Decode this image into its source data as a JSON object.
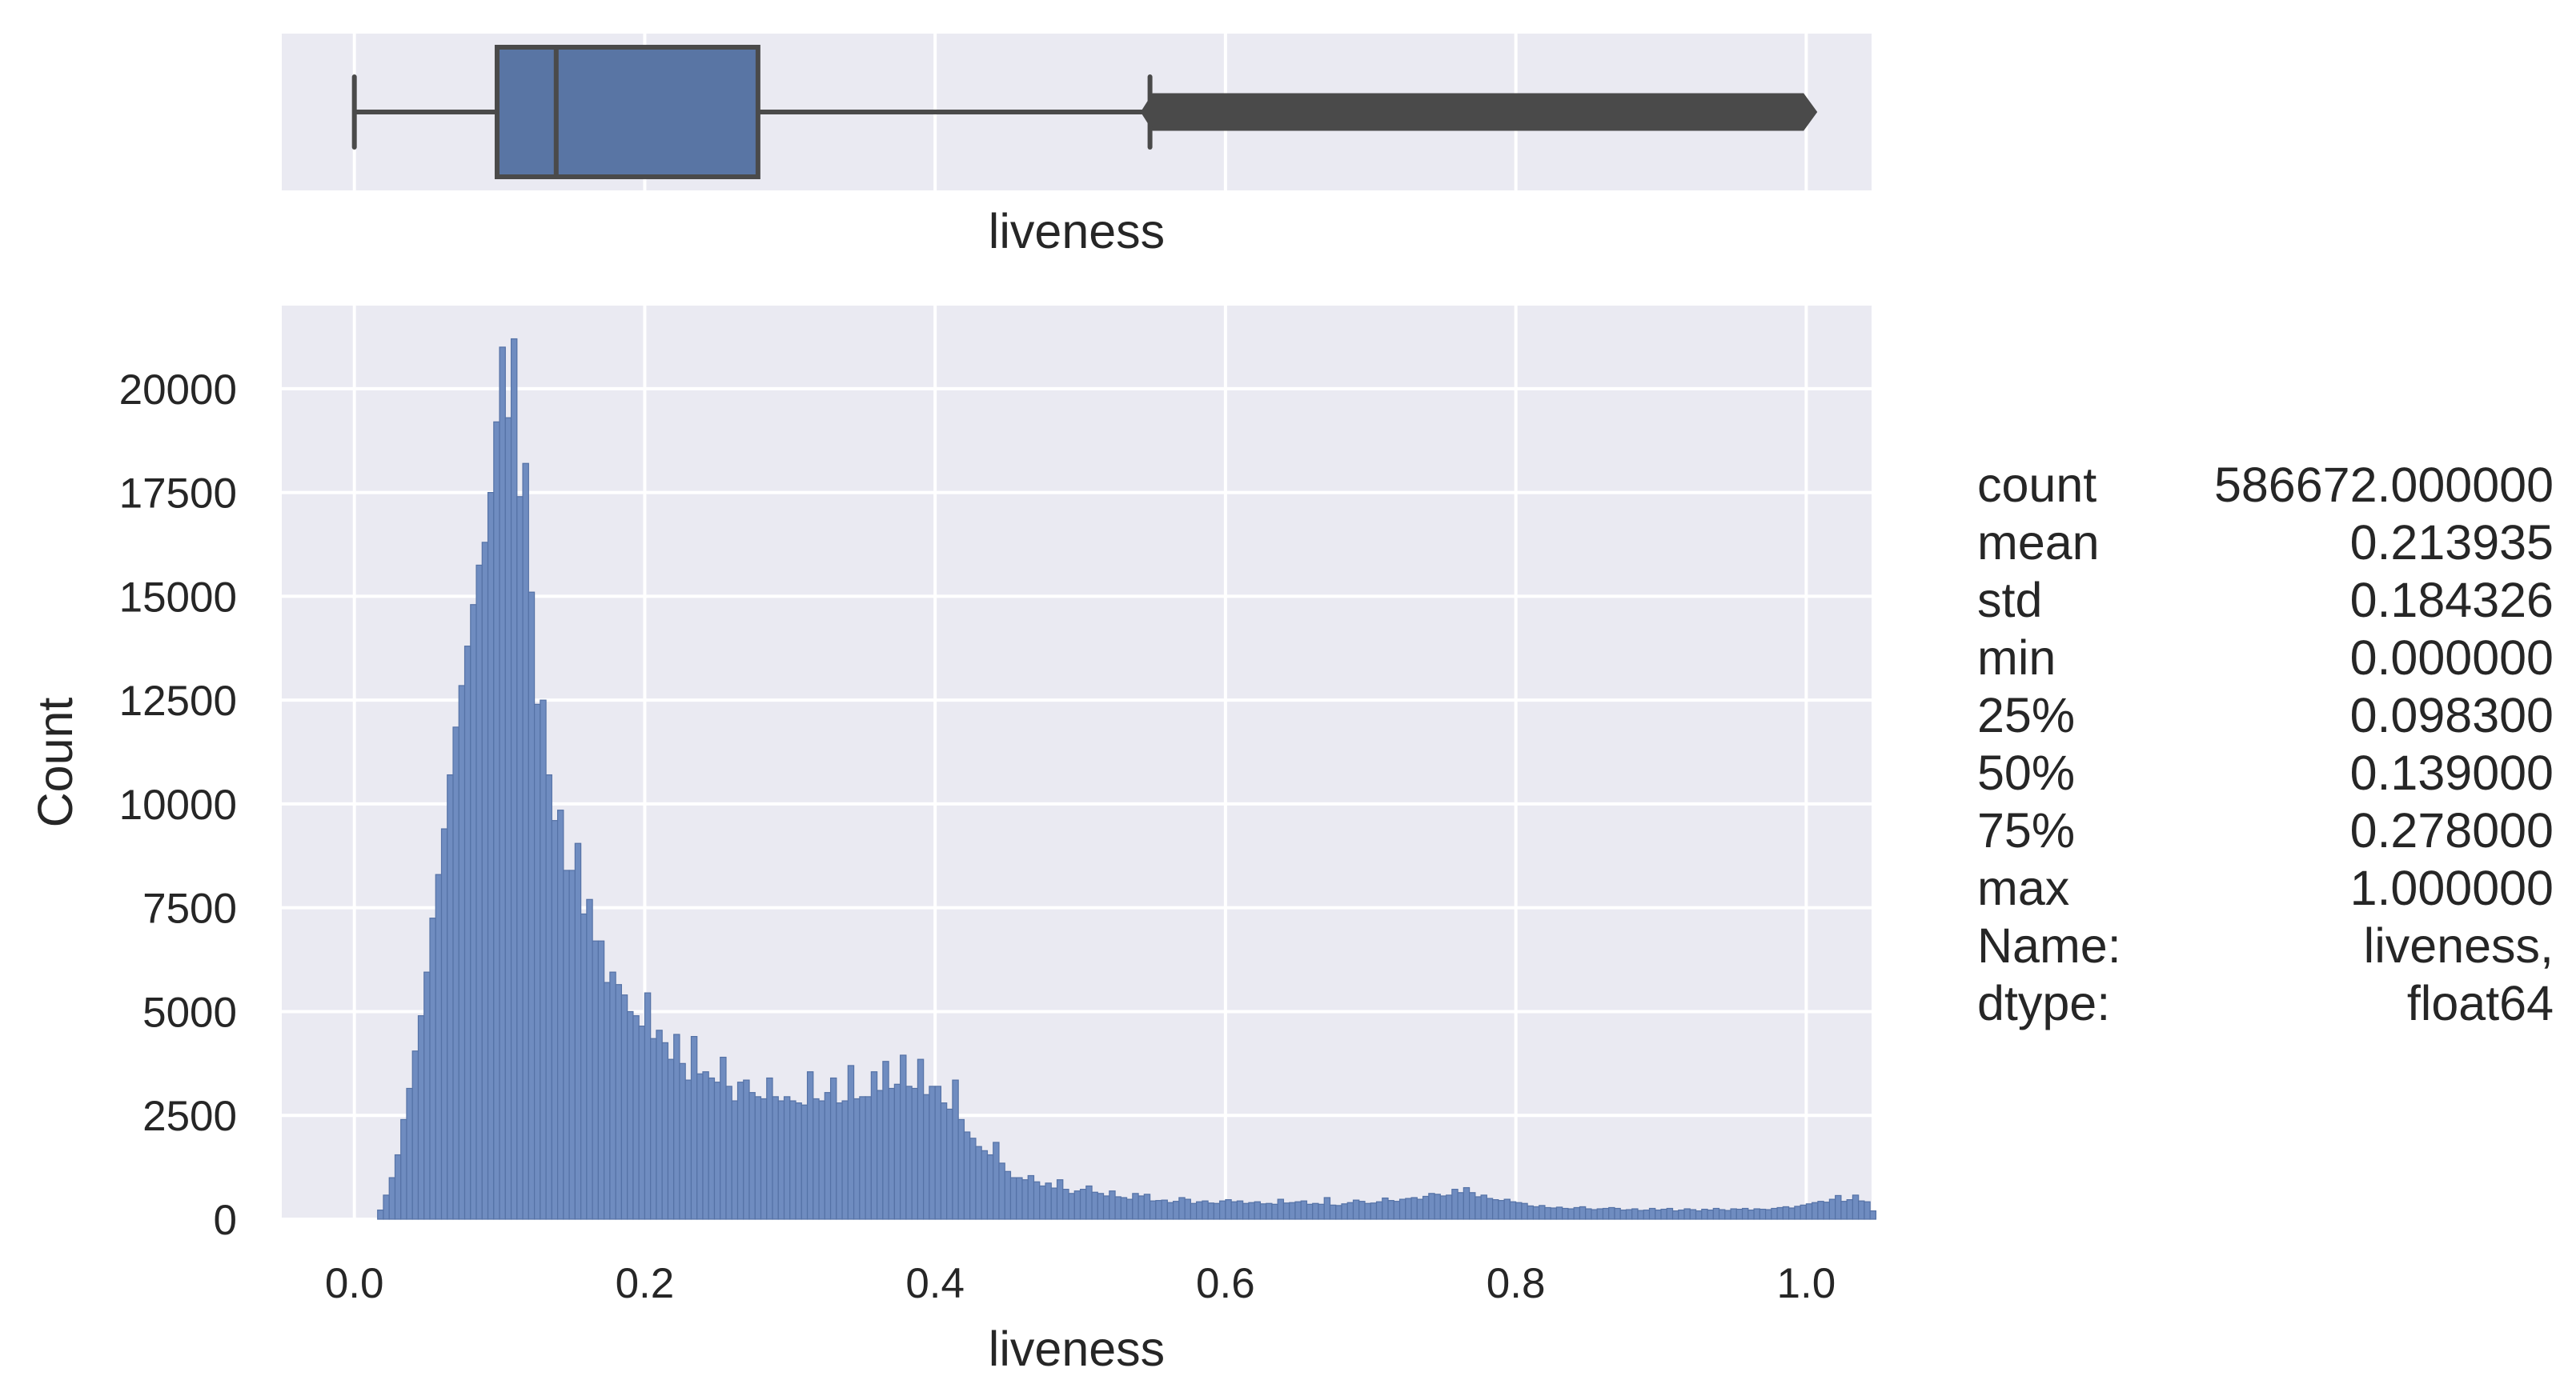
{
  "chart_data": [
    {
      "type": "box",
      "xlabel": "liveness",
      "xlim": [
        -0.05,
        1.045
      ],
      "box": {
        "whisker_low": 0.0,
        "q1": 0.0983,
        "median": 0.139,
        "q3": 0.278,
        "whisker_high": 0.548,
        "outliers_range": [
          0.548,
          1.0
        ]
      },
      "colors": {
        "box": "#5975a4",
        "edge": "#4a4a4a",
        "background": "#eaeaf2",
        "grid": "#ffffff"
      }
    },
    {
      "type": "histogram",
      "xlabel": "liveness",
      "ylabel": "Count",
      "xlim": [
        -0.05,
        1.045
      ],
      "ylim": [
        0,
        22000
      ],
      "xticks": [
        "0.0",
        "0.2",
        "0.4",
        "0.6",
        "0.8",
        "1.0"
      ],
      "yticks": [
        "0",
        "2500",
        "5000",
        "7500",
        "10000",
        "12500",
        "15000",
        "17500",
        "20000"
      ],
      "bin_start": 0.0,
      "bin_width": 0.004,
      "values": [
        0,
        0,
        0,
        0,
        220,
        580,
        1000,
        1550,
        2400,
        3150,
        4050,
        4900,
        5950,
        7250,
        8300,
        9400,
        10700,
        11850,
        12850,
        13800,
        14800,
        15750,
        16300,
        17500,
        19200,
        21000,
        19300,
        21200,
        17400,
        18200,
        15100,
        12400,
        12500,
        10700,
        9600,
        9850,
        8400,
        8400,
        9050,
        7350,
        7700,
        6700,
        6700,
        5700,
        5950,
        5650,
        5400,
        5000,
        4900,
        4650,
        5450,
        4350,
        4550,
        4250,
        3850,
        4450,
        3750,
        3350,
        4400,
        3500,
        3550,
        3400,
        3300,
        3900,
        3200,
        2850,
        3300,
        3350,
        3050,
        2950,
        2900,
        3400,
        2950,
        2850,
        2950,
        2850,
        2800,
        2750,
        3550,
        2900,
        2850,
        3050,
        3400,
        2800,
        2850,
        3700,
        2900,
        2950,
        2950,
        3550,
        3100,
        3800,
        3150,
        3250,
        3950,
        3200,
        3150,
        3850,
        3000,
        3200,
        3200,
        2800,
        2650,
        3350,
        2400,
        2100,
        1950,
        1750,
        1650,
        1550,
        1850,
        1350,
        1150,
        1000,
        1000,
        950,
        1050,
        900,
        800,
        870,
        750,
        950,
        720,
        620,
        680,
        720,
        800,
        650,
        620,
        560,
        680,
        540,
        520,
        480,
        620,
        560,
        600,
        440,
        450,
        460,
        400,
        430,
        520,
        480,
        380,
        420,
        440,
        390,
        380,
        440,
        470,
        420,
        440,
        380,
        400,
        420,
        370,
        380,
        360,
        480,
        390,
        400,
        420,
        440,
        360,
        380,
        360,
        520,
        340,
        330,
        370,
        400,
        460,
        430,
        380,
        390,
        420,
        510,
        450,
        430,
        480,
        500,
        520,
        480,
        550,
        620,
        600,
        560,
        580,
        720,
        640,
        760,
        640,
        540,
        580,
        500,
        470,
        450,
        480,
        420,
        400,
        380,
        320,
        300,
        330,
        280,
        270,
        290,
        260,
        250,
        280,
        300,
        250,
        230,
        250,
        260,
        280,
        260,
        220,
        230,
        250,
        210,
        220,
        260,
        220,
        240,
        260,
        200,
        220,
        250,
        230,
        200,
        240,
        220,
        260,
        230,
        210,
        250,
        240,
        260,
        220,
        250,
        240,
        230,
        260,
        280,
        300,
        270,
        310,
        340,
        370,
        400,
        430,
        410,
        480,
        570,
        430,
        470,
        580,
        440,
        420,
        200
      ]
    }
  ],
  "stats_table": [
    {
      "key": "count",
      "value": "586672.000000"
    },
    {
      "key": "mean",
      "value": "0.213935"
    },
    {
      "key": "std",
      "value": "0.184326"
    },
    {
      "key": "min",
      "value": "0.000000"
    },
    {
      "key": "25%",
      "value": "0.098300"
    },
    {
      "key": "50%",
      "value": "0.139000"
    },
    {
      "key": "75%",
      "value": "0.278000"
    },
    {
      "key": "max",
      "value": "1.000000"
    },
    {
      "key": "Name:",
      "value": "liveness,"
    },
    {
      "key": "dtype:",
      "value": "float64"
    }
  ]
}
